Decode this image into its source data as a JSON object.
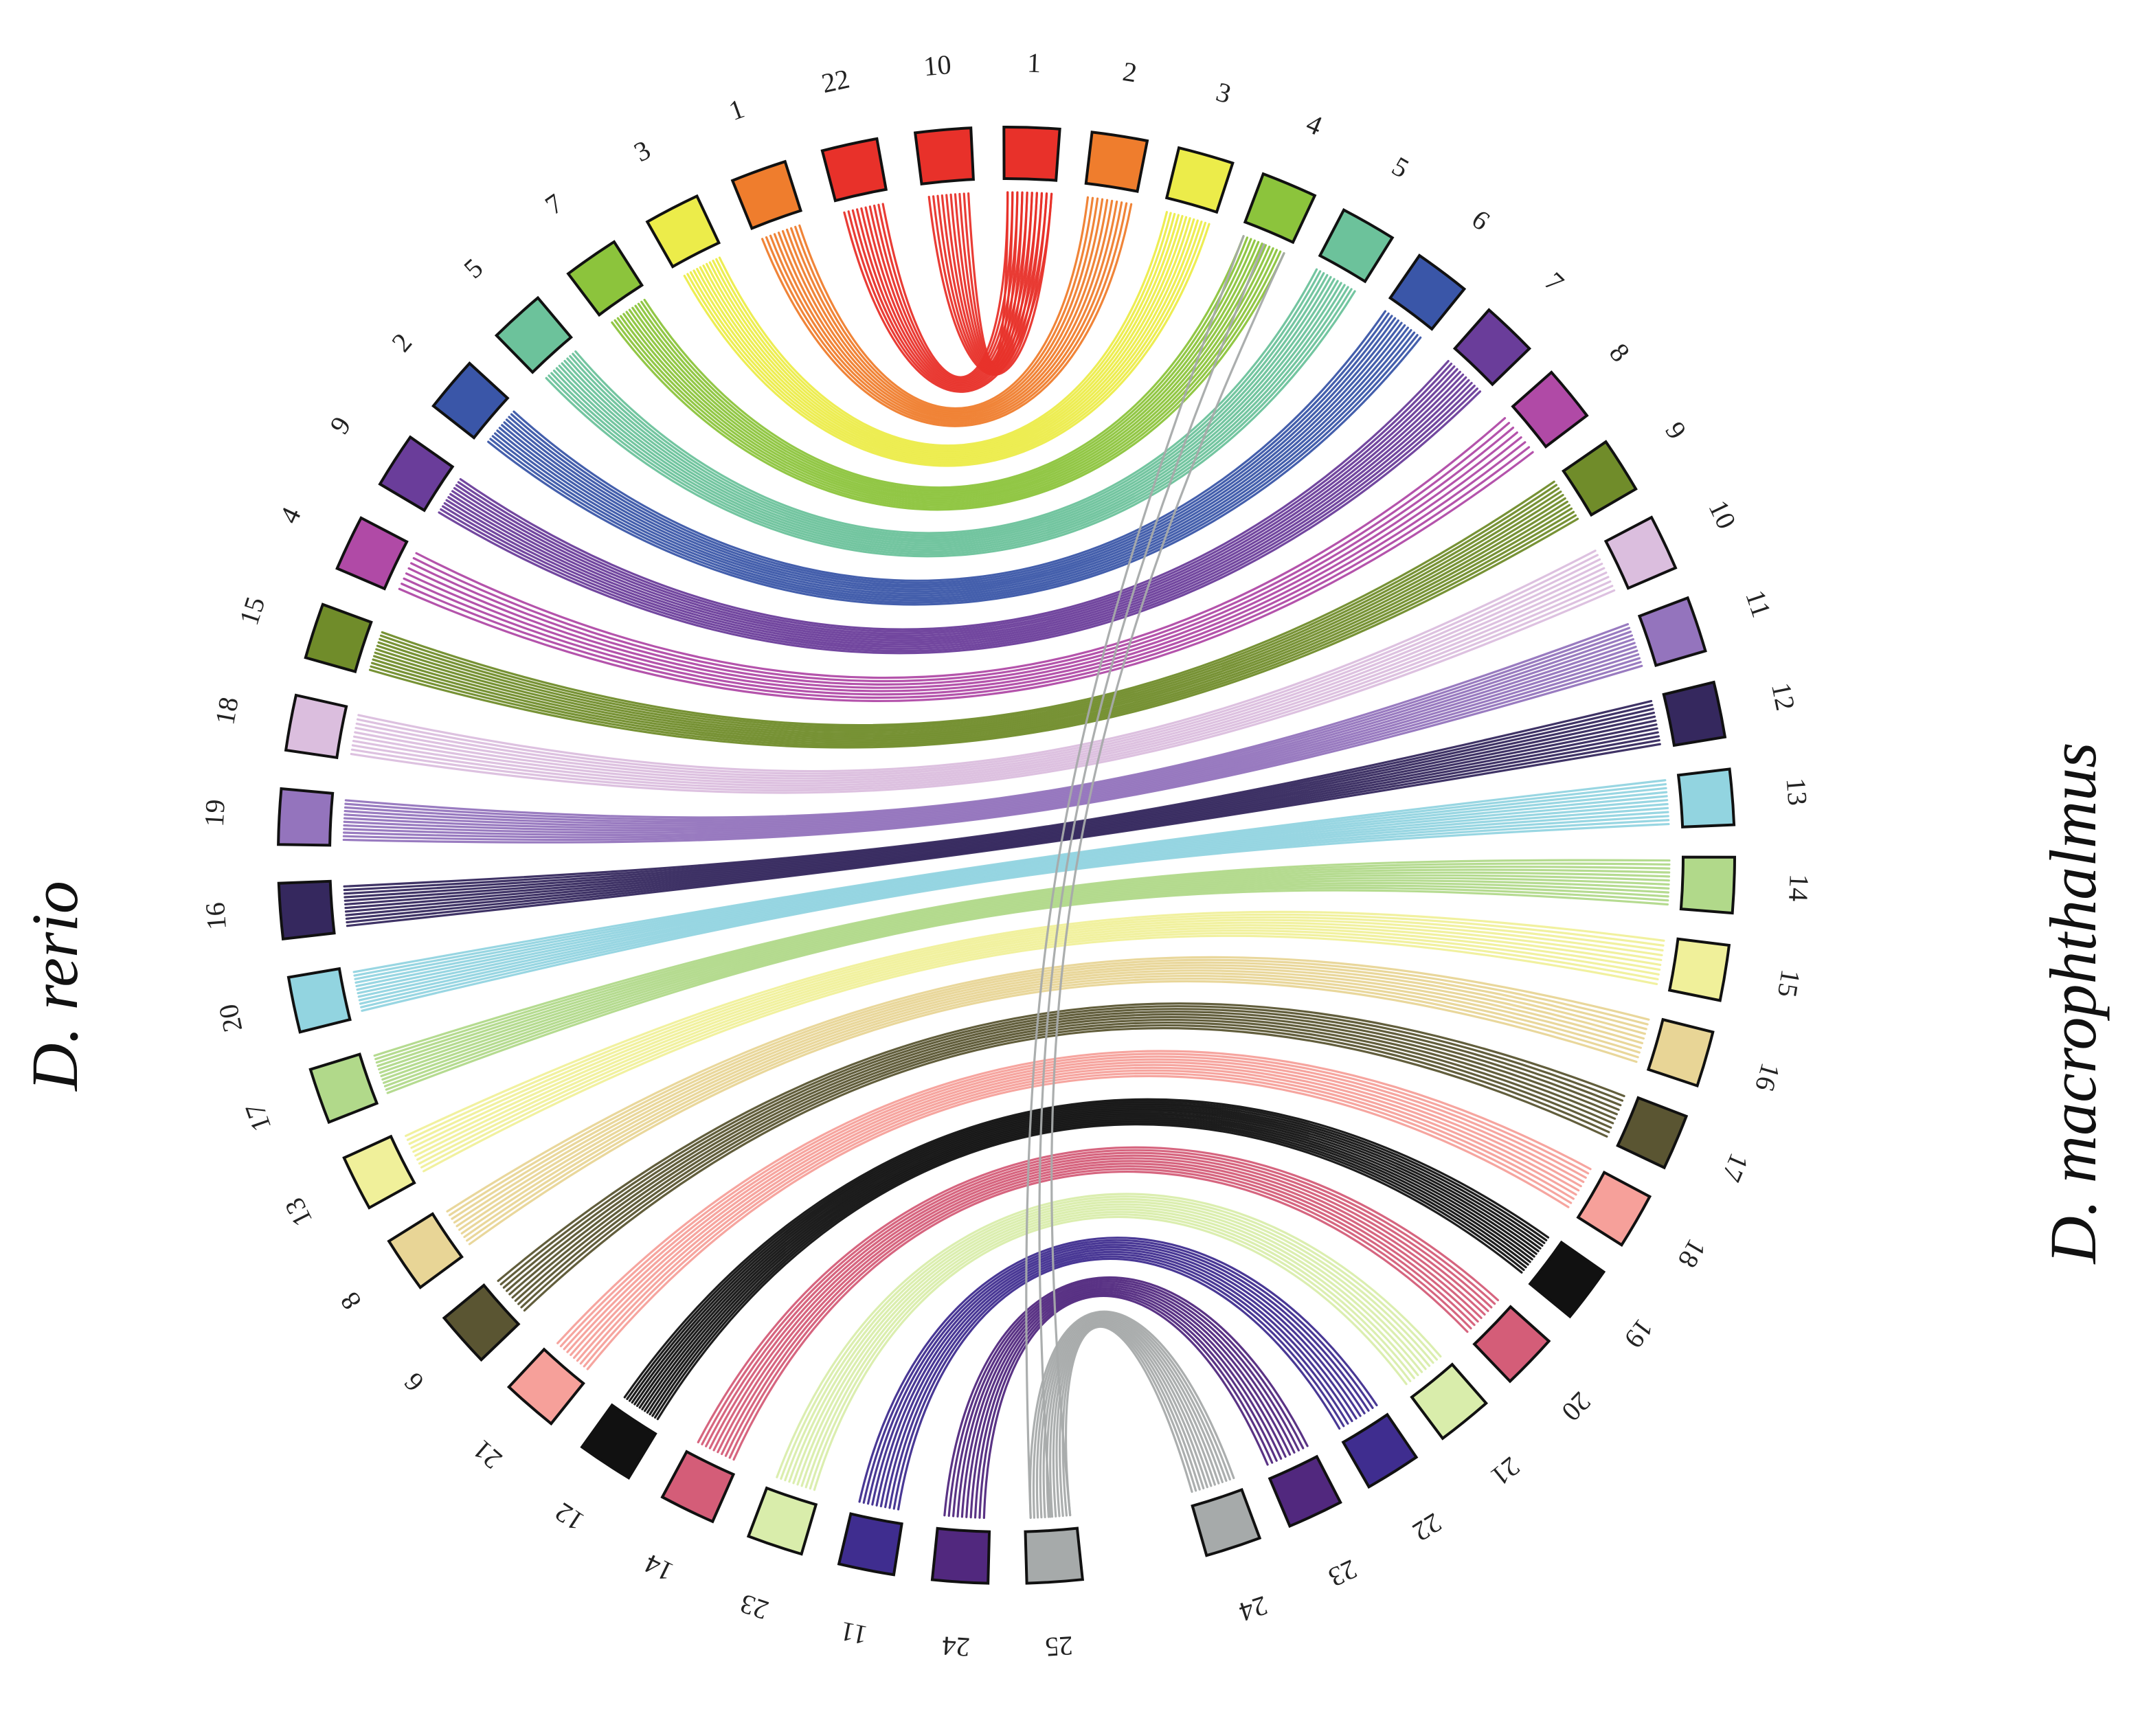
{
  "species": {
    "left": "D. rerio",
    "right": "D. macrophthalmus"
  },
  "colors": {
    "c1": "#e8312a",
    "c2": "#ef7d2d",
    "c3": "#ecec4a",
    "c4": "#8cc43c",
    "c5": "#6cc29b",
    "c6": "#3a56a8",
    "c7": "#6a3d9a",
    "c8": "#b04aa6",
    "c9": "#708c2a",
    "c10": "#dbbede",
    "c11": "#9474bd",
    "c12": "#35285e",
    "c13": "#92d4e0",
    "c14": "#b1d98a",
    "c15": "#f0f09a",
    "c16": "#e8d596",
    "c17": "#5a5532",
    "c18": "#f6a09a",
    "c19": "#111111",
    "c20": "#d45d78",
    "c21": "#d9edab",
    "c22": "#3f2d8f",
    "c23": "#51287e",
    "c24": "#a6aaaa"
  },
  "diagram": {
    "type": "circos-synteny",
    "right_chromosomes": [
      {
        "label": "1",
        "color": "c1"
      },
      {
        "label": "2",
        "color": "c2"
      },
      {
        "label": "3",
        "color": "c3"
      },
      {
        "label": "4",
        "color": "c4"
      },
      {
        "label": "5",
        "color": "c5"
      },
      {
        "label": "6",
        "color": "c6"
      },
      {
        "label": "7",
        "color": "c7"
      },
      {
        "label": "8",
        "color": "c8"
      },
      {
        "label": "9",
        "color": "c9"
      },
      {
        "label": "10",
        "color": "c10"
      },
      {
        "label": "11",
        "color": "c11"
      },
      {
        "label": "12",
        "color": "c12"
      },
      {
        "label": "13",
        "color": "c13"
      },
      {
        "label": "14",
        "color": "c14"
      },
      {
        "label": "15",
        "color": "c15"
      },
      {
        "label": "16",
        "color": "c16"
      },
      {
        "label": "17",
        "color": "c17"
      },
      {
        "label": "18",
        "color": "c18"
      },
      {
        "label": "19",
        "color": "c19"
      },
      {
        "label": "20",
        "color": "c20"
      },
      {
        "label": "21",
        "color": "c21"
      },
      {
        "label": "22",
        "color": "c22"
      },
      {
        "label": "23",
        "color": "c23"
      },
      {
        "label": "24",
        "color": "c24"
      }
    ],
    "left_chromosomes": [
      {
        "label": "10",
        "color": "c1"
      },
      {
        "label": "22",
        "color": "c1"
      },
      {
        "label": "1",
        "color": "c2"
      },
      {
        "label": "3",
        "color": "c3"
      },
      {
        "label": "7",
        "color": "c4"
      },
      {
        "label": "5",
        "color": "c5"
      },
      {
        "label": "2",
        "color": "c6"
      },
      {
        "label": "9",
        "color": "c7"
      },
      {
        "label": "4",
        "color": "c8"
      },
      {
        "label": "15",
        "color": "c9"
      },
      {
        "label": "18",
        "color": "c10"
      },
      {
        "label": "19",
        "color": "c11"
      },
      {
        "label": "16",
        "color": "c12"
      },
      {
        "label": "20",
        "color": "c13"
      },
      {
        "label": "17",
        "color": "c14"
      },
      {
        "label": "13",
        "color": "c15"
      },
      {
        "label": "8",
        "color": "c16"
      },
      {
        "label": "6",
        "color": "c17"
      },
      {
        "label": "21",
        "color": "c18"
      },
      {
        "label": "12",
        "color": "c19"
      },
      {
        "label": "14",
        "color": "c20"
      },
      {
        "label": "23",
        "color": "c21"
      },
      {
        "label": "11",
        "color": "c22"
      },
      {
        "label": "24",
        "color": "c23"
      },
      {
        "label": "25",
        "color": "c24"
      }
    ],
    "links": [
      {
        "from_right": "1",
        "to_left": "10",
        "color": "c1",
        "count": 10
      },
      {
        "from_right": "1",
        "to_left": "22",
        "color": "c1",
        "count": 10
      },
      {
        "from_right": "2",
        "to_left": "1",
        "color": "c2",
        "count": 10
      },
      {
        "from_right": "3",
        "to_left": "3",
        "color": "c3",
        "count": 12
      },
      {
        "from_right": "4",
        "to_left": "7",
        "color": "c4",
        "count": 12
      },
      {
        "from_right": "5",
        "to_left": "5",
        "color": "c5",
        "count": 12
      },
      {
        "from_right": "6",
        "to_left": "2",
        "color": "c6",
        "count": 12
      },
      {
        "from_right": "7",
        "to_left": "9",
        "color": "c7",
        "count": 12
      },
      {
        "from_right": "8",
        "to_left": "4",
        "color": "c8",
        "count": 8
      },
      {
        "from_right": "9",
        "to_left": "15",
        "color": "c9",
        "count": 12
      },
      {
        "from_right": "10",
        "to_left": "18",
        "color": "c10",
        "count": 10
      },
      {
        "from_right": "11",
        "to_left": "19",
        "color": "c11",
        "count": 12
      },
      {
        "from_right": "12",
        "to_left": "16",
        "color": "c12",
        "count": 12
      },
      {
        "from_right": "13",
        "to_left": "20",
        "color": "c13",
        "count": 12
      },
      {
        "from_right": "14",
        "to_left": "17",
        "color": "c14",
        "count": 12
      },
      {
        "from_right": "15",
        "to_left": "13",
        "color": "c15",
        "count": 10
      },
      {
        "from_right": "16",
        "to_left": "8",
        "color": "c16",
        "count": 10
      },
      {
        "from_right": "17",
        "to_left": "6",
        "color": "c17",
        "count": 10
      },
      {
        "from_right": "18",
        "to_left": "21",
        "color": "c18",
        "count": 10
      },
      {
        "from_right": "19",
        "to_left": "12",
        "color": "c19",
        "count": 14
      },
      {
        "from_right": "20",
        "to_left": "14",
        "color": "c20",
        "count": 10
      },
      {
        "from_right": "21",
        "to_left": "23",
        "color": "c21",
        "count": 10
      },
      {
        "from_right": "22",
        "to_left": "11",
        "color": "c22",
        "count": 10
      },
      {
        "from_right": "23",
        "to_left": "24",
        "color": "c23",
        "count": 10
      },
      {
        "from_right": "24",
        "to_left": "25",
        "color": "c24",
        "count": 12
      },
      {
        "from_right": "4",
        "to_left": "25",
        "color": "c24",
        "count": 3
      }
    ]
  }
}
